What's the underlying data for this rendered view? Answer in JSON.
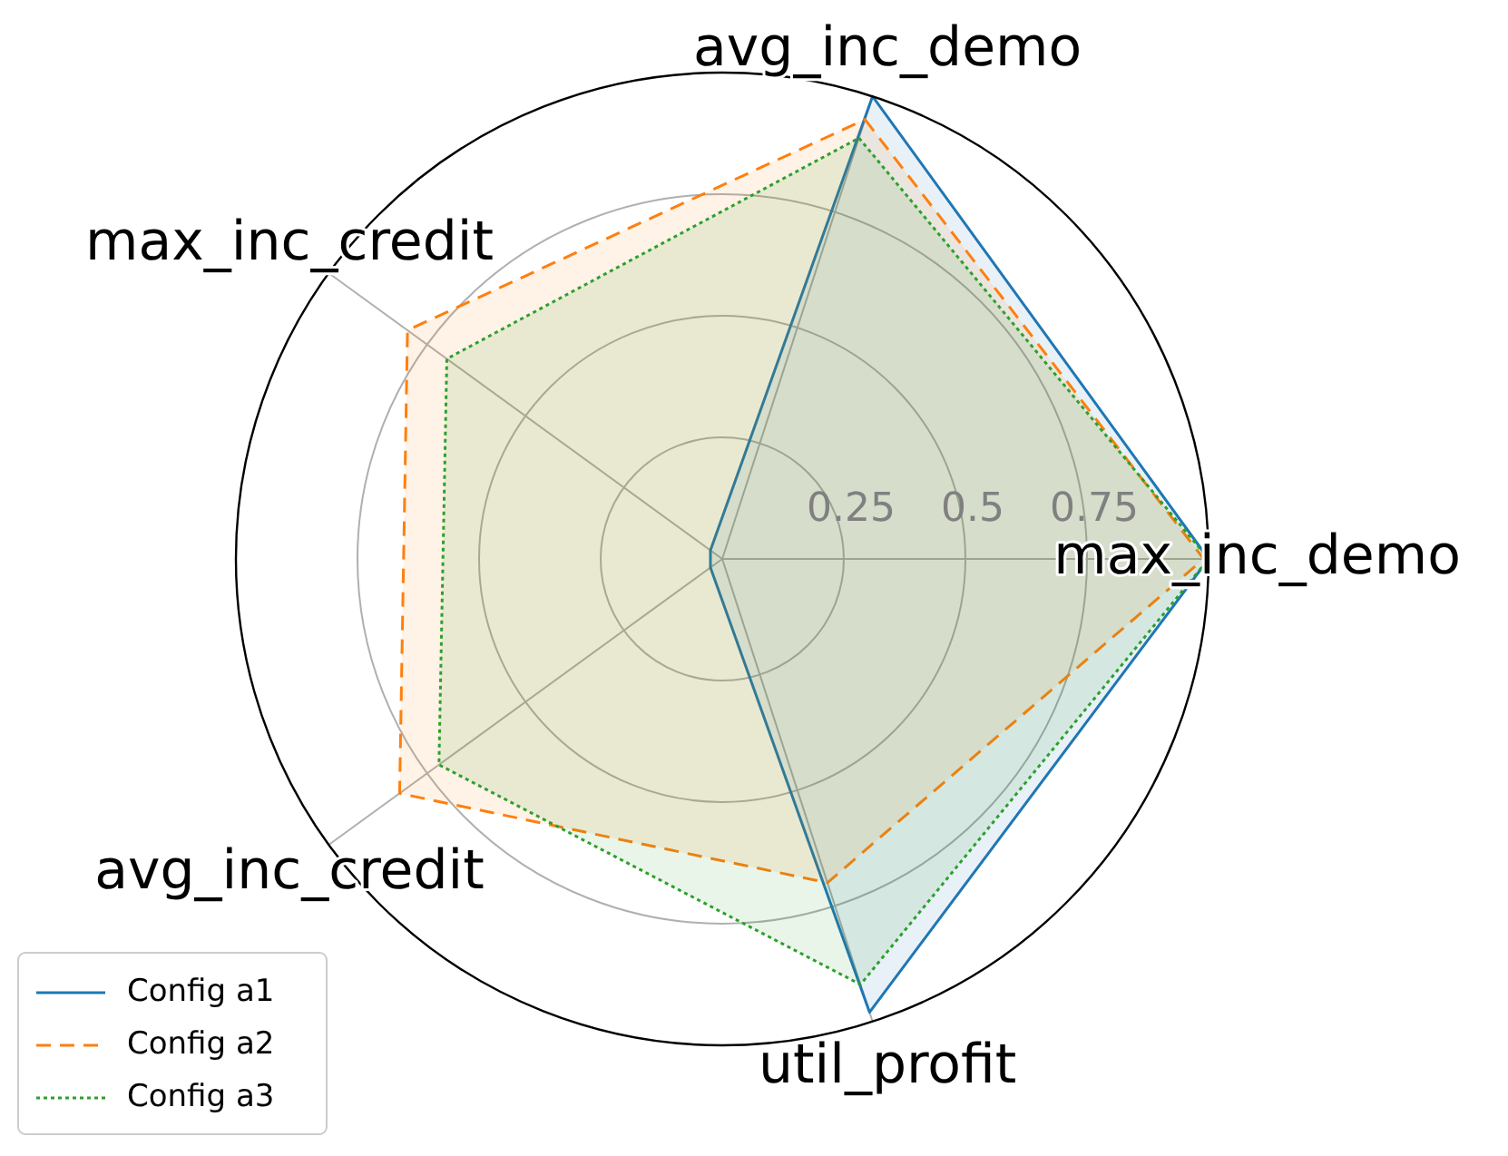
{
  "chart_data": {
    "type": "radar",
    "categories": [
      "avg_inc_demo",
      "max_inc_demo",
      "util_profit",
      "avg_inc_credit",
      "max_inc_credit"
    ],
    "ylim": [
      0,
      1
    ],
    "yticks": [
      0.25,
      0.5,
      0.75
    ],
    "grid": true,
    "legend": "bottom left",
    "series": [
      {
        "name": "Config a1",
        "color": "#1f77b4",
        "line_style": "solid",
        "values": [
          1.0,
          1.0,
          0.98,
          0.03,
          0.03
        ]
      },
      {
        "name": "Config a2",
        "color": "#ff7f0e",
        "line_style": "dashed",
        "values": [
          0.95,
          0.99,
          0.7,
          0.82,
          0.8
        ]
      },
      {
        "name": "Config a3",
        "color": "#2ca02c",
        "line_style": "dotted",
        "values": [
          0.91,
          1.0,
          0.92,
          0.72,
          0.7
        ]
      }
    ]
  }
}
